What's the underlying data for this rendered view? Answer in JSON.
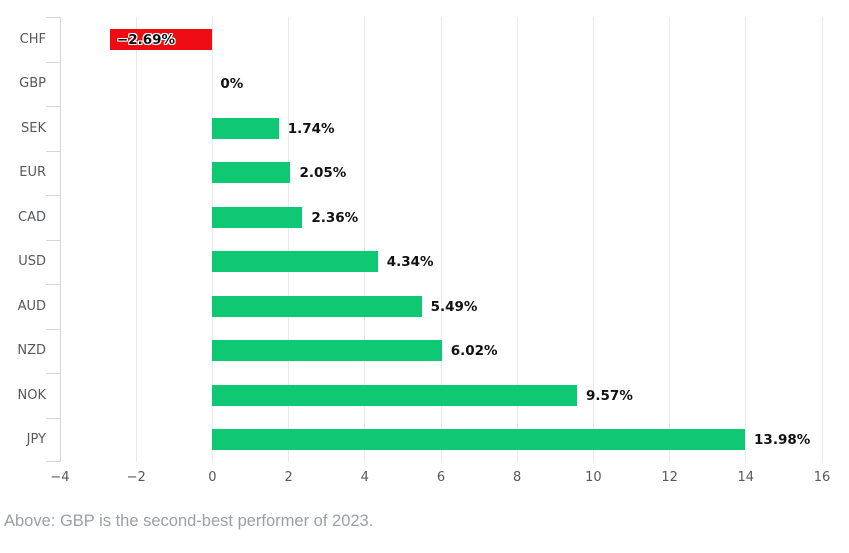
{
  "chart_data": {
    "type": "bar",
    "orientation": "horizontal",
    "title": "",
    "categories": [
      "CHF",
      "GBP",
      "SEK",
      "EUR",
      "CAD",
      "USD",
      "AUD",
      "NZD",
      "NOK",
      "JPY"
    ],
    "values": [
      -2.69,
      0,
      1.74,
      2.05,
      2.36,
      4.34,
      5.49,
      6.02,
      9.57,
      13.98
    ],
    "value_labels": [
      "−2.69%",
      "0%",
      "1.74%",
      "2.05%",
      "2.36%",
      "4.34%",
      "5.49%",
      "6.02%",
      "9.57%",
      "13.98%"
    ],
    "xlabel": "",
    "ylabel": "",
    "xlim": [
      -4,
      16
    ],
    "xticks": [
      -4,
      -2,
      0,
      2,
      4,
      6,
      8,
      10,
      12,
      14,
      16
    ],
    "xtick_labels": [
      "−4",
      "−2",
      "0",
      "2",
      "4",
      "6",
      "8",
      "10",
      "12",
      "14",
      "16"
    ],
    "grid": "vertical",
    "legend": "none",
    "colors": {
      "positive_bar": "#0ec873",
      "negative_bar": "#ee0b12",
      "grid_line": "#e9e9e9",
      "axis_line": "#d6d6d6",
      "axis_text": "#56595c",
      "value_text": "#111111",
      "background": "#ffffff"
    }
  },
  "caption": {
    "text": "Above: GBP is the second-best performer of 2023."
  }
}
